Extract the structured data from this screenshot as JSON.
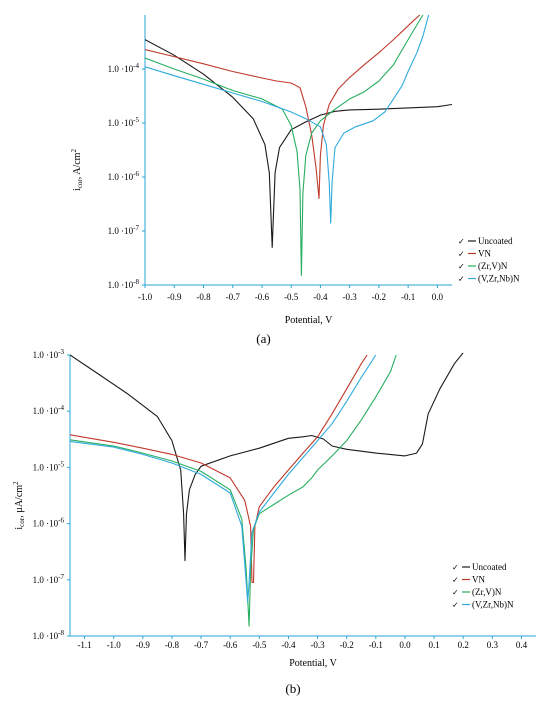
{
  "chart_data": [
    {
      "type": "line",
      "panel_label": "(a)",
      "xlabel": "Potential, V",
      "ylabel": "i cor, A/cm2",
      "ylabel_main": "i",
      "ylabel_sub": "cor",
      "ylabel_unit": ", A/cm",
      "ylabel_sup": "2",
      "ylog": true,
      "xlim": [
        -1.0,
        0.05
      ],
      "ylim": [
        1e-08,
        0.001
      ],
      "xticks": [
        "-1.0",
        "-0.9",
        "-0.8",
        "-0.7",
        "-0.6",
        "-0.5",
        "-0.4",
        "-0.3",
        "-0.2",
        "-0.1",
        "0.0"
      ],
      "xtick_values": [
        -1.0,
        -0.9,
        -0.8,
        -0.7,
        -0.6,
        -0.5,
        -0.4,
        -0.3,
        -0.2,
        -0.1,
        0.0
      ],
      "yticks": [
        {
          "value": 0.0001,
          "mant": "1.0 ·10",
          "exp": "-4"
        },
        {
          "value": 1e-05,
          "mant": "1.0 ·10",
          "exp": "-5"
        },
        {
          "value": 1e-06,
          "mant": "1.0 ·10",
          "exp": "-6"
        },
        {
          "value": 1e-07,
          "mant": "1.0 ·10",
          "exp": "-7"
        },
        {
          "value": 1e-08,
          "mant": "1.0 ·10",
          "exp": "-8"
        }
      ],
      "grid": false,
      "legend_position": "right",
      "series": [
        {
          "name": "Uncoated",
          "color": "#1a1a1a",
          "points": [
            [
              -1.0,
              0.00035
            ],
            [
              -0.9,
              0.00018
            ],
            [
              -0.8,
              8e-05
            ],
            [
              -0.7,
              3e-05
            ],
            [
              -0.63,
              1.2e-05
            ],
            [
              -0.59,
              4e-06
            ],
            [
              -0.575,
              1.2e-06
            ],
            [
              -0.565,
              5e-08
            ],
            [
              -0.555,
              1.2e-06
            ],
            [
              -0.54,
              3.5e-06
            ],
            [
              -0.5,
              7.5e-06
            ],
            [
              -0.45,
              1.05e-05
            ],
            [
              -0.4,
              1.4e-05
            ],
            [
              -0.35,
              1.65e-05
            ],
            [
              -0.3,
              1.75e-05
            ],
            [
              -0.2,
              1.8e-05
            ],
            [
              -0.1,
              1.9e-05
            ],
            [
              0.0,
              2e-05
            ],
            [
              0.05,
              2.2e-05
            ]
          ]
        },
        {
          "name": "VN",
          "color": "#c0392b",
          "points": [
            [
              -1.0,
              0.00023
            ],
            [
              -0.9,
              0.00017
            ],
            [
              -0.8,
              0.000125
            ],
            [
              -0.7,
              9e-05
            ],
            [
              -0.6,
              6.8e-05
            ],
            [
              -0.55,
              6e-05
            ],
            [
              -0.5,
              5.5e-05
            ],
            [
              -0.47,
              4.5e-05
            ],
            [
              -0.45,
              2e-05
            ],
            [
              -0.43,
              6e-06
            ],
            [
              -0.415,
              1.5e-06
            ],
            [
              -0.405,
              4e-07
            ],
            [
              -0.4,
              2.5e-06
            ],
            [
              -0.39,
              9e-06
            ],
            [
              -0.37,
              2.2e-05
            ],
            [
              -0.34,
              4.2e-05
            ],
            [
              -0.3,
              7e-05
            ],
            [
              -0.25,
              0.00012
            ],
            [
              -0.2,
              0.0002
            ],
            [
              -0.15,
              0.00035
            ],
            [
              -0.12,
              0.0005
            ],
            [
              -0.08,
              0.0008
            ],
            [
              -0.06,
              0.001
            ]
          ]
        },
        {
          "name": "(Zr,V)N",
          "color": "#27ae60",
          "points": [
            [
              -1.0,
              0.00016
            ],
            [
              -0.9,
              0.0001
            ],
            [
              -0.8,
              6.5e-05
            ],
            [
              -0.7,
              4e-05
            ],
            [
              -0.6,
              2.8e-05
            ],
            [
              -0.53,
              1.8e-05
            ],
            [
              -0.5,
              9e-06
            ],
            [
              -0.48,
              3e-06
            ],
            [
              -0.47,
              6e-07
            ],
            [
              -0.465,
              1.5e-08
            ],
            [
              -0.46,
              5e-07
            ],
            [
              -0.45,
              2.5e-06
            ],
            [
              -0.43,
              6.5e-06
            ],
            [
              -0.4,
              1.1e-05
            ],
            [
              -0.35,
              1.8e-05
            ],
            [
              -0.3,
              2.8e-05
            ],
            [
              -0.25,
              3.8e-05
            ],
            [
              -0.2,
              6e-05
            ],
            [
              -0.15,
              0.00012
            ],
            [
              -0.1,
              0.00035
            ],
            [
              -0.05,
              0.001
            ]
          ]
        },
        {
          "name": "(V,Zr,Nb)N",
          "color": "#2eaadc",
          "points": [
            [
              -1.0,
              0.00011
            ],
            [
              -0.9,
              7.5e-05
            ],
            [
              -0.8,
              5.2e-05
            ],
            [
              -0.7,
              3.6e-05
            ],
            [
              -0.6,
              2.5e-05
            ],
            [
              -0.5,
              1.6e-05
            ],
            [
              -0.45,
              1.2e-05
            ],
            [
              -0.4,
              8.5e-06
            ],
            [
              -0.38,
              4e-06
            ],
            [
              -0.37,
              8e-07
            ],
            [
              -0.365,
              1.4e-07
            ],
            [
              -0.36,
              8e-07
            ],
            [
              -0.35,
              3.5e-06
            ],
            [
              -0.32,
              6.5e-06
            ],
            [
              -0.28,
              8.5e-06
            ],
            [
              -0.22,
              1.1e-05
            ],
            [
              -0.18,
              1.6e-05
            ],
            [
              -0.15,
              2.8e-05
            ],
            [
              -0.12,
              5e-05
            ],
            [
              -0.1,
              9e-05
            ],
            [
              -0.07,
              0.0002
            ],
            [
              -0.05,
              0.0004
            ],
            [
              -0.03,
              0.001
            ]
          ]
        }
      ]
    },
    {
      "type": "line",
      "panel_label": "(b)",
      "xlabel": "Potential, V",
      "ylabel": "i cor, µA/cm2",
      "ylabel_main": "i",
      "ylabel_sub": "cor",
      "ylabel_unit": ", µA/cm",
      "ylabel_sup": "2",
      "ylog": true,
      "xlim": [
        -1.15,
        0.45
      ],
      "ylim": [
        1e-08,
        0.001
      ],
      "xticks": [
        "-1.1",
        "-1.0",
        "-0.9",
        "-0.8",
        "-0.7",
        "-0.6",
        "-0.5",
        "-0.4",
        "-0.3",
        "-0.2",
        "-0.1",
        "0.0",
        "0.1",
        "0.2",
        "0.3",
        "0.4"
      ],
      "xtick_values": [
        -1.1,
        -1.0,
        -0.9,
        -0.8,
        -0.7,
        -0.6,
        -0.5,
        -0.4,
        -0.3,
        -0.2,
        -0.1,
        0.0,
        0.1,
        0.2,
        0.3,
        0.4
      ],
      "yticks": [
        {
          "value": 0.001,
          "mant": "1.0 ·10",
          "exp": "-3"
        },
        {
          "value": 0.0001,
          "mant": "1.0 ·10",
          "exp": "-4"
        },
        {
          "value": 1e-05,
          "mant": "1.0 ·10",
          "exp": "-5"
        },
        {
          "value": 1e-06,
          "mant": "1.0 ·10",
          "exp": "-6"
        },
        {
          "value": 1e-07,
          "mant": "1.0 ·10",
          "exp": "-7"
        },
        {
          "value": 1e-08,
          "mant": "1.0 ·10",
          "exp": "-8"
        }
      ],
      "grid": false,
      "legend_position": "right",
      "series": [
        {
          "name": "Uncoated",
          "color": "#1a1a1a",
          "points": [
            [
              -1.15,
              0.001
            ],
            [
              -1.05,
              0.00045
            ],
            [
              -0.95,
              0.0002
            ],
            [
              -0.85,
              8e-05
            ],
            [
              -0.8,
              3e-05
            ],
            [
              -0.77,
              9e-06
            ],
            [
              -0.76,
              1.5e-06
            ],
            [
              -0.755,
              2.2e-07
            ],
            [
              -0.75,
              1.5e-06
            ],
            [
              -0.74,
              4e-06
            ],
            [
              -0.72,
              7.5e-06
            ],
            [
              -0.7,
              1.05e-05
            ],
            [
              -0.6,
              1.6e-05
            ],
            [
              -0.5,
              2.2e-05
            ],
            [
              -0.4,
              3.3e-05
            ],
            [
              -0.35,
              3.5e-05
            ],
            [
              -0.32,
              3.7e-05
            ],
            [
              -0.28,
              3.2e-05
            ],
            [
              -0.25,
              2.4e-05
            ],
            [
              -0.2,
              2.1e-05
            ],
            [
              -0.1,
              1.8e-05
            ],
            [
              0.0,
              1.6e-05
            ],
            [
              0.04,
              1.8e-05
            ],
            [
              0.06,
              2.6e-05
            ],
            [
              0.08,
              9e-05
            ],
            [
              0.12,
              0.00025
            ],
            [
              0.17,
              0.0007
            ],
            [
              0.2,
              0.0011
            ]
          ]
        },
        {
          "name": "VN",
          "color": "#c0392b",
          "points": [
            [
              -1.15,
              3.8e-05
            ],
            [
              -1.0,
              2.8e-05
            ],
            [
              -0.9,
              2.2e-05
            ],
            [
              -0.8,
              1.7e-05
            ],
            [
              -0.7,
              1.2e-05
            ],
            [
              -0.6,
              6.5e-06
            ],
            [
              -0.55,
              2.6e-06
            ],
            [
              -0.53,
              9e-07
            ],
            [
              -0.525,
              9e-08
            ],
            [
              -0.52,
              9e-08
            ],
            [
              -0.515,
              9e-07
            ],
            [
              -0.5,
              2e-06
            ],
            [
              -0.45,
              4.5e-06
            ],
            [
              -0.4,
              9e-06
            ],
            [
              -0.35,
              1.8e-05
            ],
            [
              -0.3,
              3.5e-05
            ],
            [
              -0.25,
              9e-05
            ],
            [
              -0.2,
              0.00025
            ],
            [
              -0.15,
              0.0007
            ],
            [
              -0.13,
              0.001
            ]
          ]
        },
        {
          "name": "(Zr,V)N",
          "color": "#27ae60",
          "points": [
            [
              -1.15,
              3.1e-05
            ],
            [
              -1.0,
              2.4e-05
            ],
            [
              -0.9,
              1.8e-05
            ],
            [
              -0.8,
              1.3e-05
            ],
            [
              -0.7,
              8.5e-06
            ],
            [
              -0.6,
              4e-06
            ],
            [
              -0.56,
              1.2e-06
            ],
            [
              -0.545,
              1.5e-07
            ],
            [
              -0.535,
              1.5e-08
            ],
            [
              -0.53,
              1.5e-07
            ],
            [
              -0.52,
              8e-07
            ],
            [
              -0.5,
              1.5e-06
            ],
            [
              -0.45,
              2.2e-06
            ],
            [
              -0.4,
              3.2e-06
            ],
            [
              -0.35,
              4.5e-06
            ],
            [
              -0.32,
              6.5e-06
            ],
            [
              -0.3,
              9e-06
            ],
            [
              -0.25,
              1.6e-05
            ],
            [
              -0.2,
              3e-05
            ],
            [
              -0.15,
              7e-05
            ],
            [
              -0.1,
              0.00018
            ],
            [
              -0.05,
              0.0005
            ],
            [
              -0.03,
              0.001
            ]
          ]
        },
        {
          "name": "(V,Zr,Nb)N",
          "color": "#2eaadc",
          "points": [
            [
              -1.15,
              2.9e-05
            ],
            [
              -1.0,
              2.3e-05
            ],
            [
              -0.9,
              1.7e-05
            ],
            [
              -0.8,
              1.2e-05
            ],
            [
              -0.7,
              7.5e-06
            ],
            [
              -0.6,
              3.5e-06
            ],
            [
              -0.56,
              9e-07
            ],
            [
              -0.545,
              9e-08
            ],
            [
              -0.54,
              4e-08
            ],
            [
              -0.535,
              9e-08
            ],
            [
              -0.525,
              7e-07
            ],
            [
              -0.5,
              1.6e-06
            ],
            [
              -0.45,
              3.5e-06
            ],
            [
              -0.4,
              7.5e-06
            ],
            [
              -0.35,
              1.5e-05
            ],
            [
              -0.3,
              3e-05
            ],
            [
              -0.25,
              6e-05
            ],
            [
              -0.2,
              0.00015
            ],
            [
              -0.15,
              0.0004
            ],
            [
              -0.1,
              0.001
            ]
          ]
        }
      ]
    }
  ]
}
